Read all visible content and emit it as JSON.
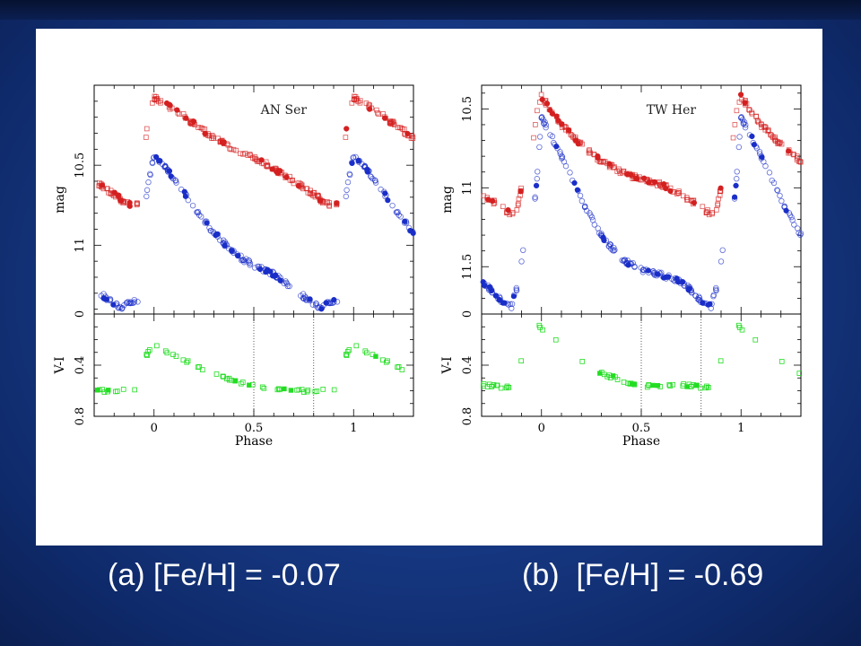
{
  "captions": {
    "a": "(a) [Fe/H] = -0.07",
    "b": "(b)  [Fe/H] = -0.69"
  },
  "colors": {
    "V": "#d42020",
    "I": "#1a2ec8",
    "VI": "#22dd22"
  },
  "chart_data": [
    {
      "type": "scatter",
      "star": "AN Ser",
      "xlabel": "Phase",
      "xlim": [
        -0.3,
        1.3
      ],
      "xticks": [
        0,
        0.5,
        1
      ],
      "vlines": [
        0.5,
        0.8
      ],
      "top": {
        "ylabel": "mag",
        "ylim": [
          11.43,
          10.0
        ],
        "ytick_labels": [
          10.5,
          11
        ],
        "series": [
          {
            "name": "V",
            "color": "#d42020",
            "type": "phase_curve",
            "phase0": 0.0,
            "x": [
              -0.3,
              -0.2,
              -0.15,
              -0.1,
              -0.05,
              -0.02,
              0.0,
              0.1,
              0.2,
              0.3,
              0.4,
              0.5,
              0.6,
              0.7,
              0.8,
              0.85,
              0.9
            ],
            "y": [
              10.72,
              10.76,
              10.74,
              10.6,
              10.38,
              10.18,
              10.08,
              10.15,
              10.24,
              10.33,
              10.4,
              10.45,
              10.52,
              10.6,
              10.68,
              10.73,
              10.75
            ]
          },
          {
            "name": "I",
            "color": "#1a2ec8",
            "type": "phase_curve",
            "phase0": 0.0,
            "x": [
              -0.3,
              -0.2,
              -0.15,
              -0.12,
              -0.1,
              -0.06,
              -0.03,
              0.0,
              0.1,
              0.2,
              0.3,
              0.4,
              0.5,
              0.6,
              0.7,
              0.8,
              0.85,
              0.88
            ],
            "y": [
              11.32,
              11.36,
              11.38,
              11.35,
              11.14,
              10.9,
              10.62,
              10.44,
              10.58,
              10.77,
              10.92,
              11.05,
              11.13,
              11.18,
              11.27,
              11.37,
              11.39,
              11.35
            ]
          }
        ]
      },
      "bottom": {
        "ylabel": "V-I",
        "ylim": [
          0.8,
          0.0
        ],
        "yticks": [
          0,
          0.4,
          0.8
        ],
        "series": [
          {
            "name": "V-I",
            "color": "#22dd22",
            "type": "phase_curve",
            "phase0": 0.0,
            "x": [
              -0.3,
              -0.2,
              -0.15,
              -0.1,
              -0.05,
              0.0,
              0.1,
              0.2,
              0.3,
              0.4,
              0.5,
              0.6,
              0.7,
              0.8,
              0.85,
              0.9
            ],
            "y": [
              0.6,
              0.61,
              0.58,
              0.5,
              0.34,
              0.25,
              0.32,
              0.4,
              0.46,
              0.52,
              0.56,
              0.58,
              0.59,
              0.61,
              0.6,
              0.6
            ]
          }
        ]
      }
    },
    {
      "type": "scatter",
      "star": "TW Her",
      "xlabel": "Phase",
      "xlim": [
        -0.3,
        1.3
      ],
      "xticks": [
        0,
        0.5,
        1
      ],
      "vlines": [
        0.5,
        0.8
      ],
      "top": {
        "ylabel": "mag",
        "ylim": [
          11.8,
          10.35
        ],
        "ytick_labels": [
          10.5,
          11,
          11.5
        ],
        "series": [
          {
            "name": "V",
            "color": "#d42020",
            "type": "phase_curve",
            "phase0": 0.0,
            "x": [
              -0.3,
              -0.2,
              -0.15,
              -0.1,
              -0.07,
              -0.04,
              -0.02,
              0.0,
              0.1,
              0.2,
              0.3,
              0.4,
              0.5,
              0.6,
              0.7,
              0.8,
              0.85,
              0.88,
              0.9
            ],
            "y": [
              11.02,
              11.1,
              11.16,
              11.14,
              11.0,
              10.7,
              10.5,
              10.42,
              10.6,
              10.73,
              10.83,
              10.9,
              10.95,
              10.98,
              11.04,
              11.12,
              11.17,
              11.12,
              11.0
            ]
          },
          {
            "name": "I",
            "color": "#1a2ec8",
            "type": "phase_curve",
            "phase0": 0.0,
            "x": [
              -0.3,
              -0.2,
              -0.15,
              -0.1,
              -0.07,
              -0.05,
              -0.02,
              0.0,
              0.1,
              0.2,
              0.3,
              0.4,
              0.5,
              0.6,
              0.7,
              0.75,
              0.8,
              0.85,
              0.88,
              0.92
            ],
            "y": [
              11.62,
              11.68,
              11.72,
              11.74,
              11.65,
              11.3,
              10.9,
              10.55,
              10.8,
              11.07,
              11.3,
              11.45,
              11.52,
              11.55,
              11.6,
              11.65,
              11.72,
              11.75,
              11.62,
              11.3
            ]
          }
        ]
      },
      "bottom": {
        "ylabel": "V-I",
        "ylim": [
          0.8,
          0.0
        ],
        "yticks": [
          0,
          0.4,
          0.8
        ],
        "series": [
          {
            "name": "V-I",
            "color": "#22dd22",
            "type": "phase_curve",
            "phase0": 0.0,
            "x": [
              -0.3,
              -0.2,
              -0.15,
              -0.1,
              -0.07,
              -0.05,
              -0.02,
              0.0,
              0.1,
              0.2,
              0.3,
              0.4,
              0.5,
              0.6,
              0.7,
              0.8,
              0.85,
              0.88,
              0.9
            ],
            "y": [
              0.56,
              0.58,
              0.62,
              0.62,
              0.5,
              0.3,
              0.07,
              0.12,
              0.25,
              0.36,
              0.46,
              0.52,
              0.56,
              0.56,
              0.55,
              0.57,
              0.58,
              0.5,
              0.35
            ]
          }
        ]
      }
    }
  ]
}
